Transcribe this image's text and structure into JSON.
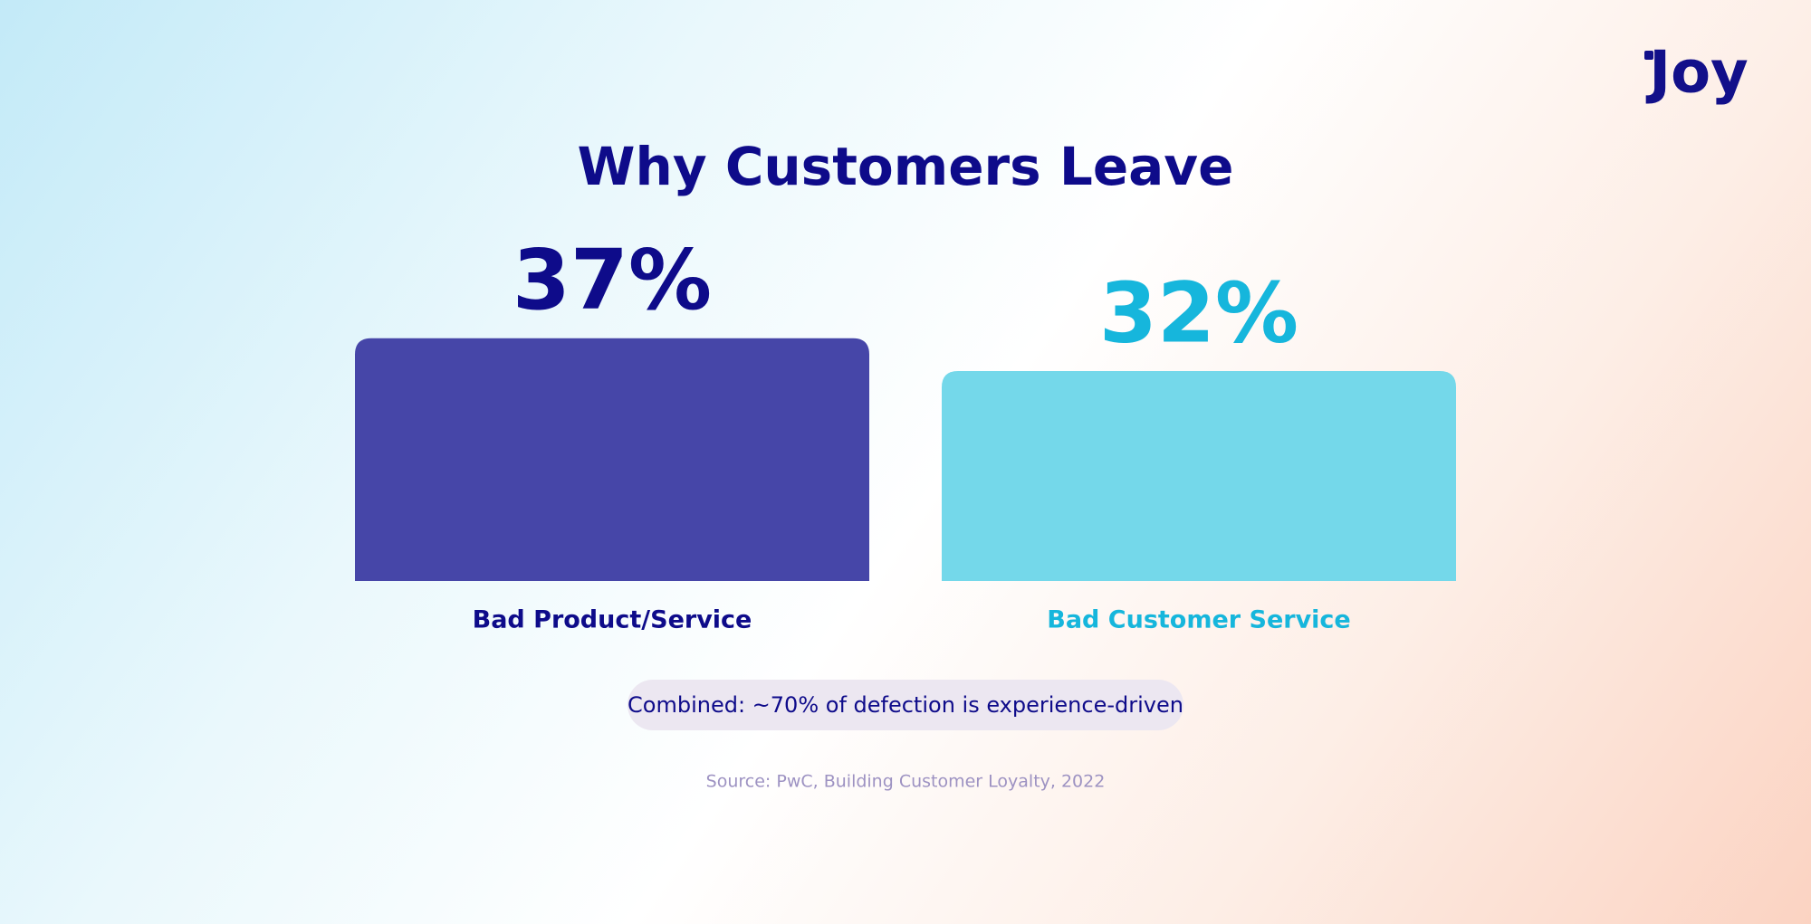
{
  "logo": "Joy",
  "chart_data": {
    "type": "bar",
    "title": "Why Customers Leave",
    "categories": [
      "Bad Product/Service",
      "Bad Customer Service"
    ],
    "values": [
      37,
      32
    ],
    "value_labels": [
      "37%",
      "32%"
    ],
    "colors": [
      "#4646a8",
      "#74d8ea"
    ],
    "label_colors": [
      "#0e0b8a",
      "#16b6dc"
    ],
    "annotation": "Combined: ~70% of defection is experience-driven",
    "source": "Source: PwC, Building Customer Loyalty, 2022"
  }
}
